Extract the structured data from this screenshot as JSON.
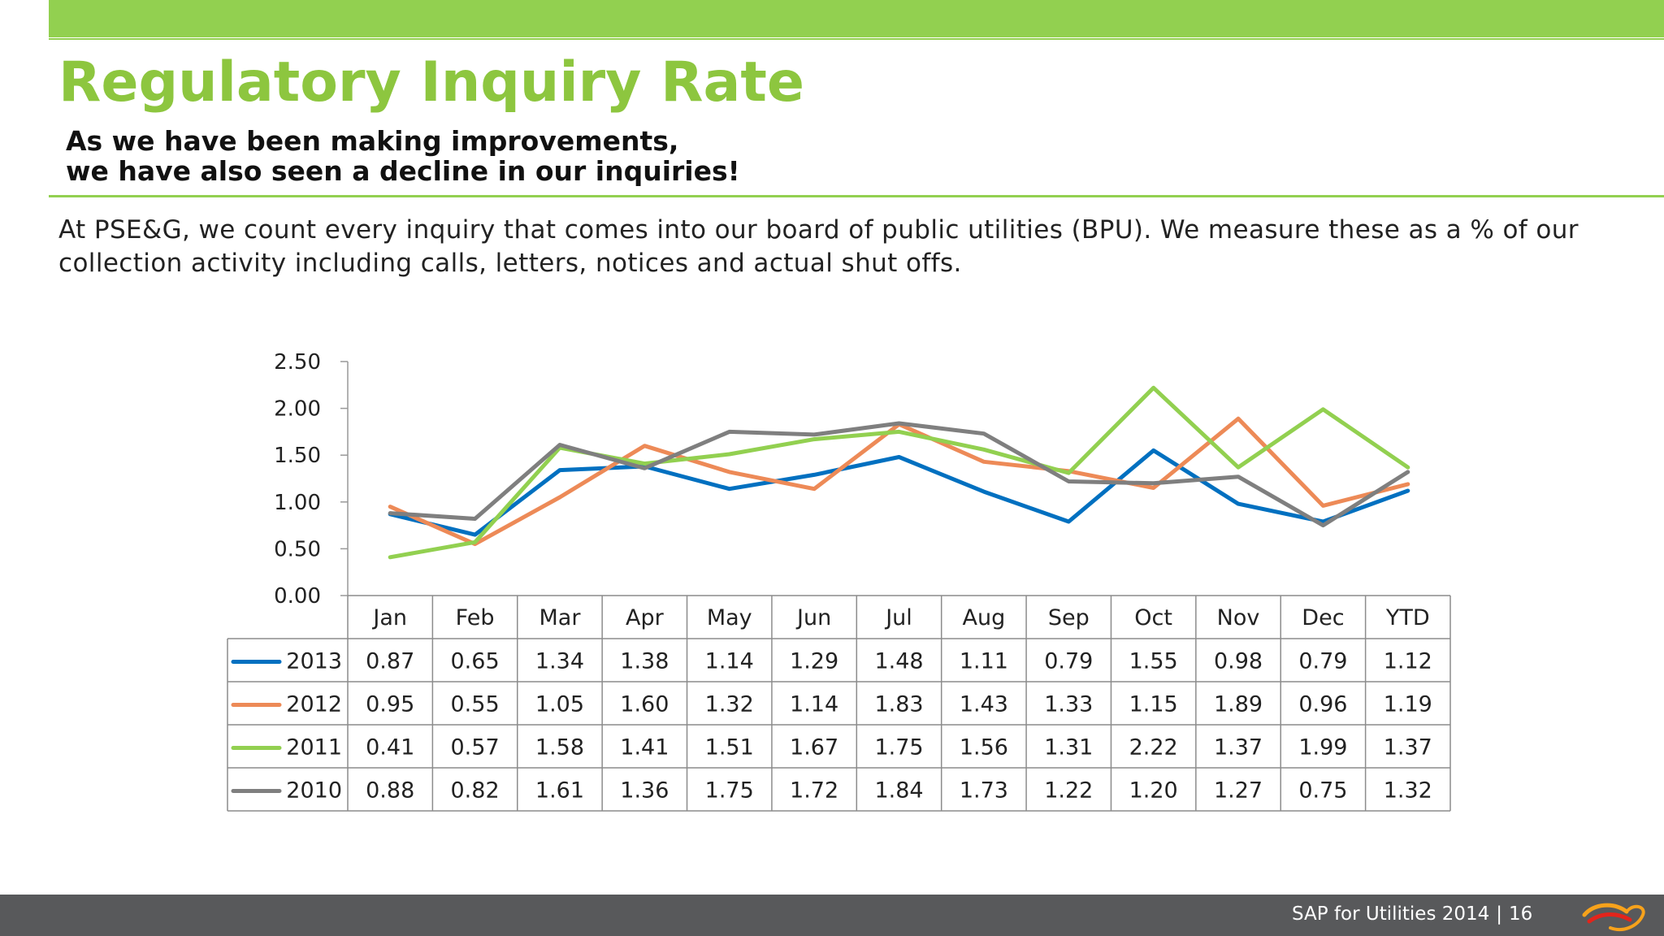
{
  "slide": {
    "title": "Regulatory Inquiry Rate",
    "subtitle_line1": "As we have been making improvements,",
    "subtitle_line2": "we have also seen a decline in our inquiries!",
    "body": "At PSE&G, we count every inquiry that comes into our board of public utilities (BPU). We measure these as a % of our collection activity including calls, letters, notices and actual shut offs.",
    "footer": "SAP for Utilities 2014",
    "footer_separator": "|",
    "page_number": "16",
    "accent_color": "#92d050",
    "footer_color": "#58595b"
  },
  "chart_data": {
    "type": "line",
    "title": "",
    "xlabel": "",
    "ylabel": "",
    "categories": [
      "Jan",
      "Feb",
      "Mar",
      "Apr",
      "May",
      "Jun",
      "Jul",
      "Aug",
      "Sep",
      "Oct",
      "Nov",
      "Dec",
      "YTD"
    ],
    "ylim": [
      0,
      2.5
    ],
    "y_ticks": [
      "0.00",
      "0.50",
      "1.00",
      "1.50",
      "2.00",
      "2.50"
    ],
    "legend": "data-table-below",
    "grid": false,
    "series": [
      {
        "name": "2013",
        "color": "#0070c0",
        "values": [
          0.87,
          0.65,
          1.34,
          1.38,
          1.14,
          1.29,
          1.48,
          1.11,
          0.79,
          1.55,
          0.98,
          0.79,
          1.12
        ],
        "labels": [
          "0.87",
          "0.65",
          "1.34",
          "1.38",
          "1.14",
          "1.29",
          "1.48",
          "1.11",
          "0.79",
          "1.55",
          "0.98",
          "0.79",
          "1.12"
        ]
      },
      {
        "name": "2012",
        "color": "#ed8a57",
        "values": [
          0.95,
          0.55,
          1.05,
          1.6,
          1.32,
          1.14,
          1.83,
          1.43,
          1.33,
          1.15,
          1.89,
          0.96,
          1.19
        ],
        "labels": [
          "0.95",
          "0.55",
          "1.05",
          "1.60",
          "1.32",
          "1.14",
          "1.83",
          "1.43",
          "1.33",
          "1.15",
          "1.89",
          "0.96",
          "1.19"
        ]
      },
      {
        "name": "2011",
        "color": "#92d050",
        "values": [
          0.41,
          0.57,
          1.58,
          1.41,
          1.51,
          1.67,
          1.75,
          1.56,
          1.31,
          2.22,
          1.37,
          1.99,
          1.37
        ],
        "labels": [
          "0.41",
          "0.57",
          "1.58",
          "1.41",
          "1.51",
          "1.67",
          "1.75",
          "1.56",
          "1.31",
          "2.22",
          "1.37",
          "1.99",
          "1.37"
        ]
      },
      {
        "name": "2010",
        "color": "#7f7f7f",
        "values": [
          0.88,
          0.82,
          1.61,
          1.36,
          1.75,
          1.72,
          1.84,
          1.73,
          1.22,
          1.2,
          1.27,
          0.75,
          1.32
        ],
        "labels": [
          "0.88",
          "0.82",
          "1.61",
          "1.36",
          "1.75",
          "1.72",
          "1.84",
          "1.73",
          "1.22",
          "1.20",
          "1.27",
          "0.75",
          "1.32"
        ]
      }
    ]
  }
}
